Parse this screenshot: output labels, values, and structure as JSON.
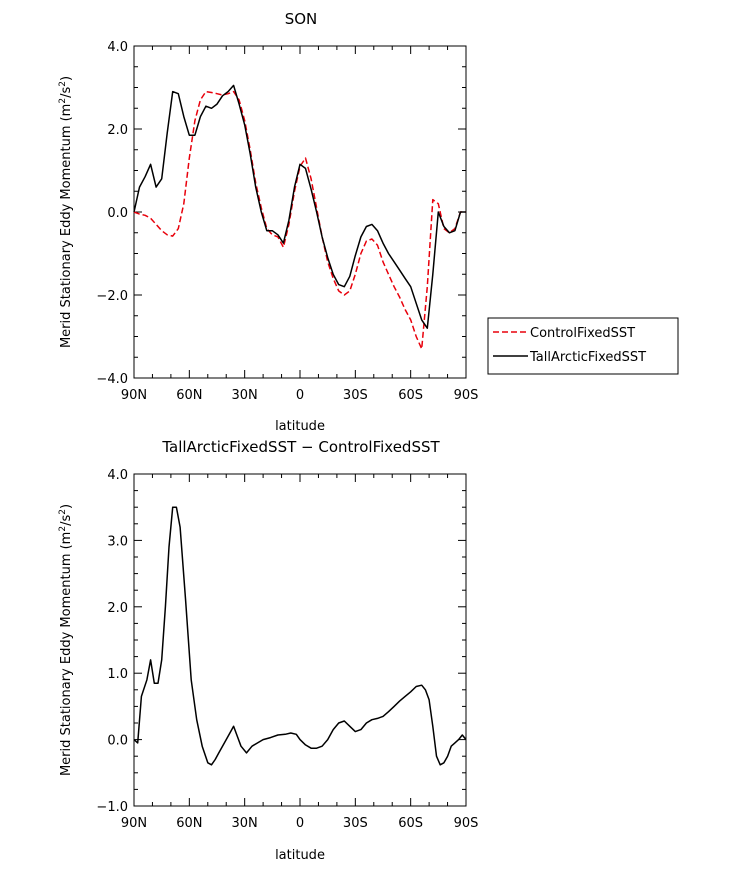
{
  "chart_data": [
    {
      "type": "line",
      "title": "SON",
      "xlabel": "latitude",
      "ylabel": "Merid Stationary Eddy Momentum (m²/s²)",
      "ylabel_main": "Merid Stationary Eddy Momentum (m",
      "ylabel_sup": "2",
      "ylabel_mid": "/s",
      "ylabel_sup2": "2",
      "ylabel_end": ")",
      "xlim": [
        90,
        -90
      ],
      "ylim": [
        -4.0,
        4.0
      ],
      "xticks": [
        90,
        60,
        30,
        0,
        -30,
        -60,
        -90
      ],
      "xtick_labels": [
        "90N",
        "60N",
        "30N",
        "0",
        "30S",
        "60S",
        "90S"
      ],
      "yticks": [
        -4.0,
        -2.0,
        0.0,
        2.0,
        4.0
      ],
      "ytick_labels": [
        "−4.0",
        "−2.0",
        "0.0",
        "2.0",
        "4.0"
      ],
      "legend": {
        "position": "right",
        "entries": [
          "ControlFixedSST",
          "TallArcticFixedSST"
        ]
      },
      "series": [
        {
          "name": "ControlFixedSST",
          "color": "#e8000b",
          "dash": "dashed",
          "x": [
            90,
            87,
            84,
            81,
            78,
            75,
            72,
            69,
            66,
            63,
            60,
            57,
            54,
            51,
            48,
            45,
            42,
            39,
            36,
            33,
            30,
            27,
            24,
            21,
            18,
            15,
            12,
            9,
            6,
            3,
            0,
            -3,
            -6,
            -9,
            -12,
            -15,
            -18,
            -21,
            -24,
            -27,
            -30,
            -33,
            -36,
            -39,
            -42,
            -45,
            -48,
            -51,
            -54,
            -57,
            -60,
            -63,
            -66,
            -69,
            -72,
            -75,
            -78,
            -81,
            -84,
            -87,
            -90
          ],
          "values": [
            0.0,
            -0.05,
            -0.08,
            -0.15,
            -0.3,
            -0.45,
            -0.55,
            -0.58,
            -0.4,
            0.2,
            1.3,
            2.2,
            2.7,
            2.9,
            2.88,
            2.85,
            2.82,
            2.85,
            2.9,
            2.7,
            2.2,
            1.5,
            0.7,
            0.1,
            -0.4,
            -0.55,
            -0.6,
            -0.85,
            -0.3,
            0.5,
            1.1,
            1.3,
            0.8,
            0.1,
            -0.6,
            -1.2,
            -1.6,
            -1.9,
            -2.0,
            -1.9,
            -1.5,
            -1.0,
            -0.7,
            -0.65,
            -0.8,
            -1.2,
            -1.5,
            -1.8,
            -2.05,
            -2.35,
            -2.6,
            -3.0,
            -3.3,
            -1.8,
            0.3,
            0.2,
            -0.4,
            -0.5,
            -0.4,
            0.0,
            0.0
          ]
        },
        {
          "name": "TallArcticFixedSST",
          "color": "#000000",
          "dash": "solid",
          "x": [
            90,
            87,
            84,
            81,
            78,
            75,
            72,
            69,
            66,
            63,
            60,
            57,
            54,
            51,
            48,
            45,
            42,
            39,
            36,
            33,
            30,
            27,
            24,
            21,
            18,
            15,
            12,
            9,
            6,
            3,
            0,
            -3,
            -6,
            -9,
            -12,
            -15,
            -18,
            -21,
            -24,
            -27,
            -30,
            -33,
            -36,
            -39,
            -42,
            -45,
            -48,
            -51,
            -54,
            -57,
            -60,
            -63,
            -66,
            -69,
            -72,
            -75,
            -78,
            -81,
            -84,
            -87,
            -90
          ],
          "values": [
            0.0,
            0.6,
            0.85,
            1.15,
            0.6,
            0.8,
            1.9,
            2.9,
            2.85,
            2.3,
            1.85,
            1.85,
            2.3,
            2.55,
            2.5,
            2.6,
            2.8,
            2.9,
            3.05,
            2.6,
            2.1,
            1.4,
            0.6,
            0.0,
            -0.45,
            -0.45,
            -0.55,
            -0.75,
            -0.2,
            0.6,
            1.15,
            1.05,
            0.55,
            0.0,
            -0.6,
            -1.1,
            -1.5,
            -1.75,
            -1.8,
            -1.55,
            -1.05,
            -0.6,
            -0.35,
            -0.3,
            -0.45,
            -0.75,
            -1.0,
            -1.2,
            -1.4,
            -1.6,
            -1.8,
            -2.2,
            -2.6,
            -2.8,
            -1.5,
            0.0,
            -0.35,
            -0.5,
            -0.45,
            0.0,
            0.0
          ]
        }
      ]
    },
    {
      "type": "line",
      "title": "TallArcticFixedSST − ControlFixedSST",
      "xlabel": "latitude",
      "ylabel": "Merid Stationary Eddy Momentum (m²/s²)",
      "ylabel_main": "Merid Stationary Eddy Momentum (m",
      "ylabel_sup": "2",
      "ylabel_mid": "/s",
      "ylabel_sup2": "2",
      "ylabel_end": ")",
      "xlim": [
        90,
        -90
      ],
      "ylim": [
        -1.0,
        4.0
      ],
      "xticks": [
        90,
        60,
        30,
        0,
        -30,
        -60,
        -90
      ],
      "xtick_labels": [
        "90N",
        "60N",
        "30N",
        "0",
        "30S",
        "60S",
        "90S"
      ],
      "yticks": [
        -1.0,
        0.0,
        1.0,
        2.0,
        3.0,
        4.0
      ],
      "ytick_labels": [
        "−1.0",
        "0.0",
        "1.0",
        "2.0",
        "3.0",
        "4.0"
      ],
      "series": [
        {
          "color": "#000000",
          "dash": "solid",
          "x": [
            90,
            88,
            86,
            83,
            81,
            79,
            77,
            75,
            73,
            71,
            69,
            67,
            65,
            62,
            59,
            56,
            53,
            50,
            48,
            46,
            44,
            41,
            38,
            36,
            34,
            32,
            29,
            26,
            23,
            20,
            16,
            12,
            8,
            5,
            2,
            0,
            -3,
            -6,
            -9,
            -12,
            -15,
            -18,
            -21,
            -24,
            -27,
            -30,
            -33,
            -36,
            -39,
            -42,
            -45,
            -48,
            -51,
            -54,
            -57,
            -60,
            -63,
            -66,
            -68,
            -70,
            -72,
            -74,
            -76,
            -78,
            -80,
            -82,
            -84,
            -86,
            -88,
            -90
          ],
          "values": [
            0.0,
            -0.05,
            0.65,
            0.9,
            1.2,
            0.85,
            0.85,
            1.2,
            2.0,
            2.9,
            3.5,
            3.5,
            3.2,
            2.1,
            0.9,
            0.3,
            -0.1,
            -0.35,
            -0.38,
            -0.3,
            -0.2,
            -0.05,
            0.1,
            0.2,
            0.05,
            -0.1,
            -0.2,
            -0.1,
            -0.05,
            0.0,
            0.03,
            0.07,
            0.08,
            0.1,
            0.08,
            0.0,
            -0.08,
            -0.13,
            -0.13,
            -0.1,
            0.0,
            0.15,
            0.25,
            0.28,
            0.2,
            0.12,
            0.15,
            0.25,
            0.3,
            0.32,
            0.35,
            0.42,
            0.5,
            0.58,
            0.65,
            0.72,
            0.8,
            0.82,
            0.75,
            0.6,
            0.2,
            -0.25,
            -0.38,
            -0.35,
            -0.25,
            -0.1,
            -0.05,
            0.0,
            0.07,
            0.0
          ]
        }
      ]
    }
  ]
}
